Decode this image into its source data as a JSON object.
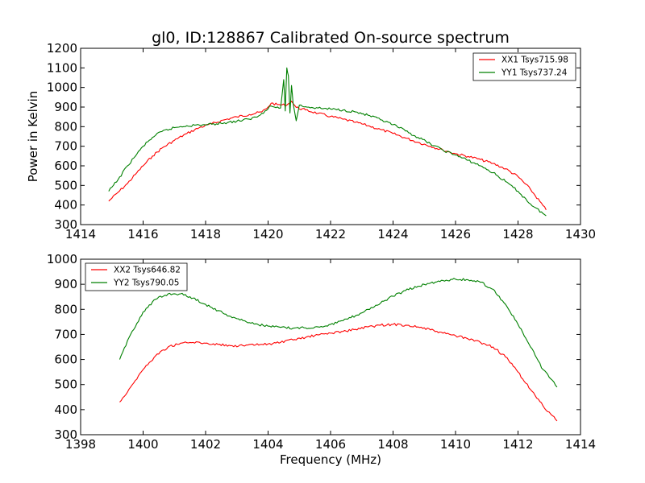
{
  "chart_data": [
    {
      "type": "line",
      "title": "gl0, ID:128867 Calibrated On-source spectrum",
      "xlabel": "",
      "ylabel": "Power in Kelvin",
      "xlim": [
        1414,
        1430
      ],
      "ylim": [
        300,
        1200
      ],
      "xticks": [
        "1414",
        "1416",
        "1418",
        "1420",
        "1422",
        "1424",
        "1426",
        "1428",
        "1430"
      ],
      "yticks": [
        "300",
        "400",
        "500",
        "600",
        "700",
        "800",
        "900",
        "1000",
        "1100",
        "1200"
      ],
      "legend_position": "top-right",
      "series": [
        {
          "name": "XX1 Tsys715.98",
          "color": "#ff0000",
          "x": [
            1414.9,
            1415.2,
            1415.5,
            1415.8,
            1416.0,
            1416.3,
            1416.6,
            1417.0,
            1417.4,
            1417.8,
            1418.2,
            1418.6,
            1419.0,
            1419.4,
            1419.8,
            1420.0,
            1420.1,
            1420.3,
            1420.6,
            1420.75,
            1420.9,
            1421.2,
            1421.6,
            1422.0,
            1422.4,
            1422.8,
            1423.2,
            1423.6,
            1424.0,
            1424.4,
            1424.8,
            1425.2,
            1425.6,
            1426.0,
            1426.4,
            1426.8,
            1427.2,
            1427.6,
            1428.0,
            1428.4,
            1428.9
          ],
          "y": [
            420,
            465,
            510,
            565,
            600,
            650,
            690,
            730,
            765,
            795,
            815,
            835,
            850,
            862,
            875,
            900,
            920,
            912,
            910,
            930,
            898,
            885,
            868,
            852,
            838,
            822,
            805,
            785,
            765,
            742,
            720,
            700,
            680,
            662,
            648,
            632,
            612,
            585,
            545,
            480,
            375
          ]
        },
        {
          "name": "YY1 Tsys737.24",
          "color": "#008000",
          "x": [
            1414.9,
            1415.2,
            1415.5,
            1415.8,
            1416.0,
            1416.3,
            1416.6,
            1417.0,
            1417.4,
            1417.8,
            1418.2,
            1418.6,
            1419.0,
            1419.4,
            1419.7,
            1419.9,
            1420.05,
            1420.2,
            1420.4,
            1420.5,
            1420.55,
            1420.6,
            1420.65,
            1420.7,
            1420.75,
            1420.8,
            1420.9,
            1421.0,
            1421.3,
            1421.6,
            1422.0,
            1422.4,
            1422.8,
            1423.2,
            1423.6,
            1424.0,
            1424.4,
            1424.8,
            1425.2,
            1425.6,
            1426.0,
            1426.4,
            1426.8,
            1427.2,
            1427.6,
            1428.0,
            1428.4,
            1428.9
          ],
          "y": [
            470,
            530,
            600,
            660,
            700,
            745,
            775,
            795,
            805,
            808,
            812,
            820,
            828,
            838,
            855,
            880,
            905,
            900,
            895,
            1040,
            880,
            1100,
            1060,
            870,
            1010,
            920,
            830,
            910,
            900,
            895,
            890,
            885,
            875,
            858,
            835,
            810,
            778,
            745,
            712,
            680,
            655,
            628,
            600,
            565,
            520,
            470,
            405,
            345
          ]
        }
      ]
    },
    {
      "type": "line",
      "title": "",
      "xlabel": "Frequency (MHz)",
      "ylabel": "",
      "xlim": [
        1398,
        1414
      ],
      "ylim": [
        300,
        1000
      ],
      "xticks": [
        "1398",
        "1400",
        "1402",
        "1404",
        "1406",
        "1408",
        "1410",
        "1412",
        "1414"
      ],
      "yticks": [
        "300",
        "400",
        "500",
        "600",
        "700",
        "800",
        "900",
        "1000"
      ],
      "legend_position": "top-left",
      "series": [
        {
          "name": "XX2 Tsys646.82",
          "color": "#ff0000",
          "x": [
            1399.25,
            1399.6,
            1400.0,
            1400.4,
            1400.8,
            1401.2,
            1401.6,
            1402.0,
            1402.4,
            1402.8,
            1403.2,
            1403.6,
            1404.0,
            1404.4,
            1404.8,
            1405.2,
            1405.6,
            1406.0,
            1406.4,
            1406.8,
            1407.2,
            1407.6,
            1408.0,
            1408.4,
            1408.8,
            1409.2,
            1409.6,
            1410.0,
            1410.4,
            1410.8,
            1411.2,
            1411.6,
            1412.0,
            1412.4,
            1412.8,
            1413.25
          ],
          "y": [
            430,
            490,
            560,
            615,
            650,
            665,
            668,
            665,
            660,
            655,
            655,
            658,
            662,
            668,
            678,
            688,
            698,
            705,
            712,
            720,
            730,
            737,
            740,
            737,
            730,
            718,
            705,
            695,
            682,
            668,
            650,
            610,
            550,
            480,
            415,
            355
          ]
        },
        {
          "name": "YY2 Tsys790.05",
          "color": "#008000",
          "x": [
            1399.25,
            1399.6,
            1400.0,
            1400.4,
            1400.8,
            1401.2,
            1401.6,
            1402.0,
            1402.4,
            1402.8,
            1403.2,
            1403.6,
            1404.0,
            1404.4,
            1404.8,
            1405.2,
            1405.6,
            1406.0,
            1406.4,
            1406.8,
            1407.2,
            1407.6,
            1408.0,
            1408.4,
            1408.8,
            1409.2,
            1409.6,
            1410.0,
            1410.4,
            1410.8,
            1411.2,
            1411.6,
            1412.0,
            1412.4,
            1412.8,
            1413.25
          ],
          "y": [
            600,
            700,
            790,
            840,
            862,
            862,
            845,
            820,
            795,
            772,
            755,
            742,
            733,
            728,
            725,
            726,
            730,
            740,
            755,
            775,
            800,
            825,
            852,
            875,
            892,
            905,
            915,
            920,
            918,
            908,
            880,
            820,
            740,
            650,
            560,
            490
          ]
        }
      ]
    }
  ]
}
